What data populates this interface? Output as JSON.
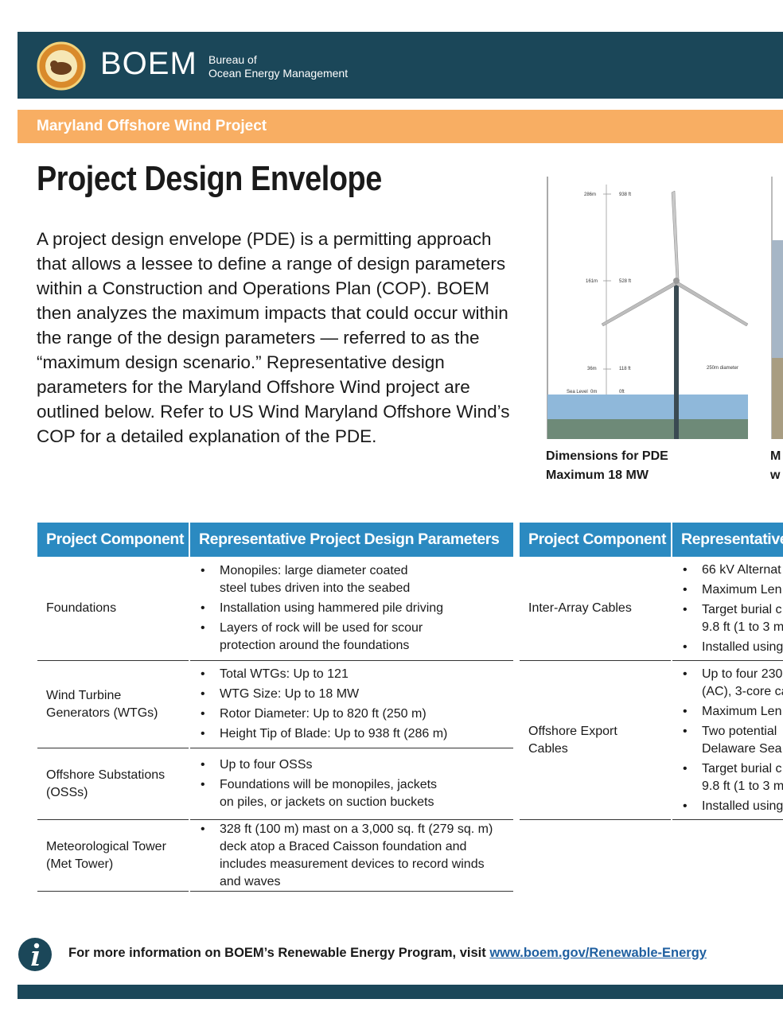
{
  "header": {
    "logo_text": "BOEM",
    "org_line1": "Bureau of",
    "org_line2": "Ocean Energy Management"
  },
  "banner": "Maryland Offshore Wind Project",
  "title": "Project Design Envelope",
  "intro": "A project design envelope (PDE) is a permitting approach that allows a lessee to define a range of design parameters within a Construction and Operations Plan (COP). BOEM then analyzes the maximum impacts that could occur within the range of the design parameters — referred to as the “maximum design scenario.” Representative design parameters for the Maryland Offshore Wind project are outlined below. Refer to US Wind Maryland Offshore Wind’s COP for a detailed explanation of the PDE.",
  "figures": [
    {
      "labels": {
        "h1_m": "286m",
        "h1_ft": "938 ft",
        "h2_m": "161m",
        "h2_ft": "528 ft",
        "h3_m": "36m",
        "h3_ft": "118 ft",
        "sea_m": "Sea Level  0m",
        "sea_ft": "0ft",
        "diameter": "250m diameter"
      },
      "caption": [
        "Dimensions for PDE",
        "Maximum 18 MW"
      ]
    },
    {
      "caption": [
        "M",
        "w"
      ]
    }
  ],
  "table_left": {
    "headers": [
      "Project Component",
      "Representative Project Design Parameters"
    ],
    "rows": [
      {
        "component": [
          "Foundations"
        ],
        "items": [
          [
            "Monopiles: large diameter coated",
            "steel tubes driven into the seabed"
          ],
          [
            "Installation using hammered pile driving"
          ],
          [
            "Layers of rock will be used for scour",
            "protection around the foundations"
          ]
        ]
      },
      {
        "component": [
          "Wind Turbine",
          "Generators (WTGs)"
        ],
        "items": [
          [
            "Total WTGs: Up to 121"
          ],
          [
            "WTG Size: Up to 18 MW"
          ],
          [
            "Rotor Diameter: Up to 820 ft (250 m)"
          ],
          [
            "Height Tip of Blade: Up to 938 ft (286 m)"
          ]
        ]
      },
      {
        "component": [
          "Offshore Substations",
          "(OSSs)"
        ],
        "items": [
          [
            "Up to four OSSs"
          ],
          [
            "Foundations will be monopiles, jackets",
            "on piles, or jackets on suction buckets"
          ]
        ]
      },
      {
        "component": [
          "Meteorological Tower",
          "(Met Tower)"
        ],
        "items": [
          [
            "328 ft (100 m) mast on a 3,000 sq. ft (279 sq. m)",
            "deck atop a Braced Caisson foundation and",
            "includes measurement devices to record winds",
            "and waves"
          ]
        ]
      }
    ]
  },
  "table_right": {
    "headers": [
      "Project Component",
      "Representative"
    ],
    "rows": [
      {
        "component": [
          "Inter-Array Cables"
        ],
        "items": [
          [
            "66 kV Alternat"
          ],
          [
            "Maximum Len"
          ],
          [
            "Target burial c",
            "9.8 ft (1 to 3 m"
          ],
          [
            "Installed using"
          ]
        ]
      },
      {
        "component": [
          "Offshore Export",
          "Cables"
        ],
        "items": [
          [
            "Up to four 230",
            "(AC), 3-core ca"
          ],
          [
            "Maximum Len"
          ],
          [
            "Two potential",
            "Delaware Sea"
          ],
          [
            "Target burial c",
            "9.8 ft (1 to 3 m"
          ],
          [
            "Installed using"
          ]
        ]
      }
    ]
  },
  "footer": {
    "text": "For more information on BOEM’s Renewable Energy Program, visit",
    "link": "www.boem.gov/Renewable-Energy"
  }
}
